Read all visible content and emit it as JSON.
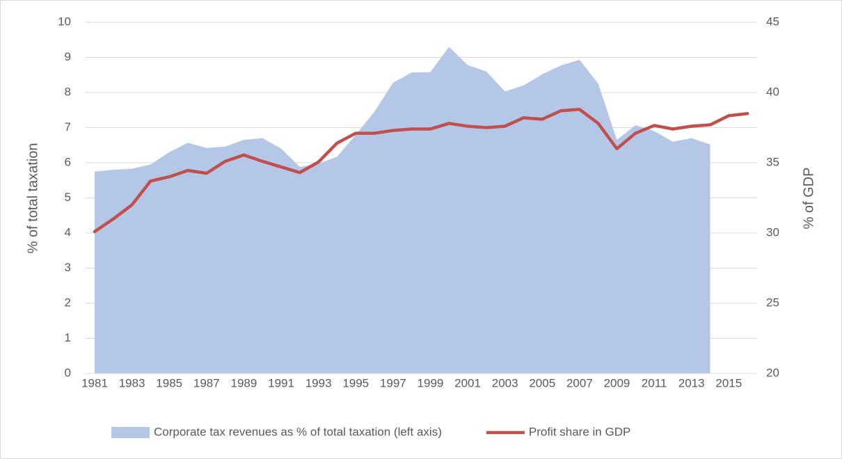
{
  "chart_data": {
    "type": "area-line",
    "categories": [
      "1981",
      null,
      "1983",
      null,
      "1985",
      null,
      "1987",
      null,
      "1989",
      null,
      "1991",
      null,
      "1993",
      null,
      "1995",
      null,
      "1997",
      null,
      "1999",
      null,
      "2001",
      null,
      "2003",
      null,
      "2005",
      null,
      "2007",
      null,
      "2009",
      null,
      "2011",
      null,
      "2013",
      null,
      "2015",
      null
    ],
    "series": [
      {
        "name": "Corporate tax revenues as % of total taxation (left axis)",
        "color": "#b4c7e7",
        "kind": "area",
        "axis": "y",
        "values": [
          5.75,
          5.8,
          5.83,
          5.95,
          6.3,
          6.57,
          6.42,
          6.46,
          6.65,
          6.7,
          6.4,
          5.88,
          5.97,
          6.17,
          6.8,
          7.45,
          8.28,
          8.57,
          8.58,
          9.3,
          8.78,
          8.6,
          8.03,
          8.2,
          8.52,
          8.77,
          8.93,
          8.25,
          6.65,
          7.07,
          6.9,
          6.6,
          6.7,
          6.52,
          null,
          null
        ]
      },
      {
        "name": "Profit share in GDP",
        "color": "#c0504d",
        "kind": "line",
        "axis": "y2",
        "values": [
          30.1,
          31.0,
          32.0,
          33.7,
          34.0,
          34.45,
          34.25,
          35.1,
          35.55,
          35.1,
          34.7,
          34.3,
          35.05,
          36.4,
          37.1,
          37.1,
          37.3,
          37.4,
          37.4,
          37.8,
          37.6,
          37.5,
          37.6,
          38.2,
          38.1,
          38.7,
          38.8,
          37.8,
          36.0,
          37.1,
          37.65,
          37.4,
          37.6,
          37.7,
          38.35,
          38.5
        ]
      }
    ],
    "y_label": "% of total taxation",
    "y2_label": "% of GDP",
    "ylim": [
      0,
      10
    ],
    "yticks": [
      0,
      1,
      2,
      3,
      4,
      5,
      6,
      7,
      8,
      9,
      10
    ],
    "y2lim": [
      20,
      45
    ],
    "y2ticks": [
      20,
      25,
      30,
      35,
      40,
      45
    ],
    "grid": true,
    "legend": "bottom"
  }
}
